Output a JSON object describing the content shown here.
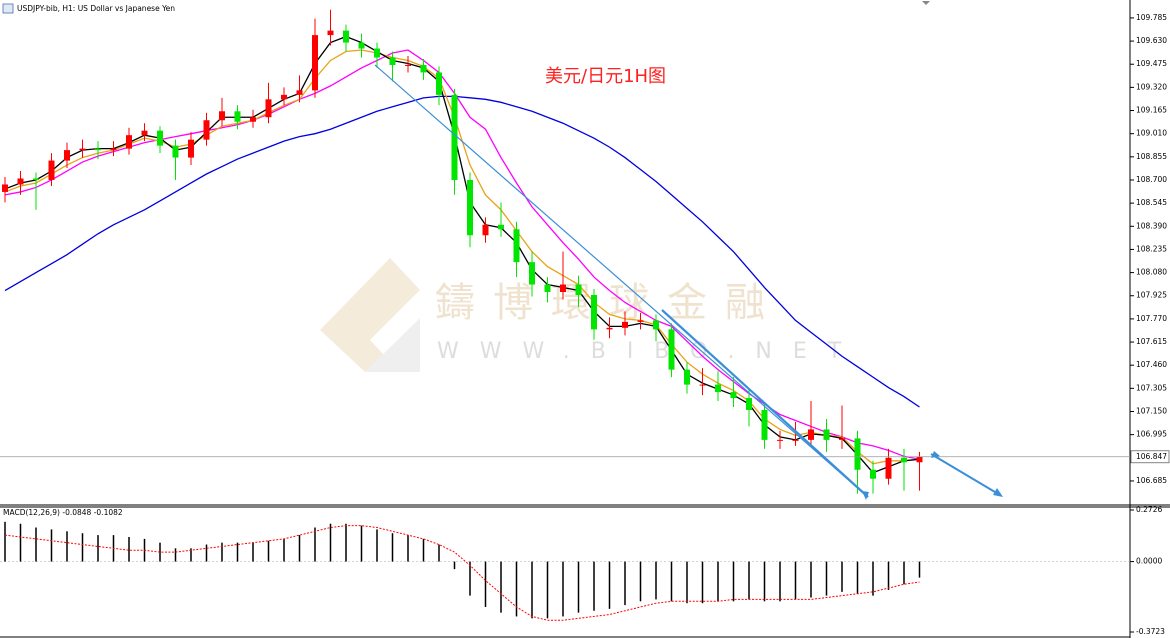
{
  "chart_data": [
    {
      "type": "candlestick",
      "title": "USDJPY-bib, H1: US Dollar vs Japanese Yen",
      "annotation": "美元/日元1H图",
      "watermark": "鑄博環球金融",
      "watermark_url": "WWW.BIBO.NET",
      "up_color": "#ff0000",
      "down_color": "#00e600",
      "ylim": [
        106.524,
        109.905
      ],
      "yticks": [
        109.785,
        {
          "value": 109.63,
          "label": "109.630"
        },
        109.475,
        {
          "value": 109.32,
          "label": "109.320"
        },
        109.165,
        {
          "value": 109.01,
          "label": "109.010"
        },
        108.855,
        {
          "value": 108.7,
          "label": "108.700"
        },
        108.545,
        {
          "value": 108.39,
          "label": "108.390"
        },
        108.235,
        {
          "value": 108.08,
          "label": "108.080"
        },
        107.925,
        {
          "value": 107.77,
          "label": "107.770"
        },
        107.615,
        {
          "value": 107.46,
          "label": "107.460"
        },
        107.305,
        {
          "value": 107.15,
          "label": "107.150"
        },
        106.995,
        106.685
      ],
      "current_price": 106.847,
      "ohlc": [
        [
          108.62,
          108.72,
          108.55,
          108.67
        ],
        [
          108.67,
          108.76,
          108.6,
          108.71
        ],
        [
          108.71,
          108.75,
          108.5,
          108.7
        ],
        [
          108.7,
          108.88,
          108.66,
          108.83
        ],
        [
          108.83,
          108.95,
          108.78,
          108.9
        ],
        [
          108.9,
          108.97,
          108.85,
          108.91
        ],
        [
          108.91,
          108.96,
          108.84,
          108.9
        ],
        [
          108.9,
          108.96,
          108.86,
          108.91
        ],
        [
          108.91,
          109.05,
          108.87,
          109
        ],
        [
          109,
          109.08,
          108.96,
          109.03
        ],
        [
          109.03,
          109.06,
          108.88,
          108.93
        ],
        [
          108.93,
          108.97,
          108.7,
          108.85
        ],
        [
          108.85,
          109.02,
          108.8,
          108.97
        ],
        [
          108.97,
          109.15,
          108.93,
          109.1
        ],
        [
          109.1,
          109.25,
          109.06,
          109.16
        ],
        [
          109.16,
          109.2,
          109.04,
          109.09
        ],
        [
          109.09,
          109.17,
          109.05,
          109.12
        ],
        [
          109.12,
          109.35,
          109.08,
          109.24
        ],
        [
          109.24,
          109.32,
          109.2,
          109.27
        ],
        [
          109.27,
          109.4,
          109.22,
          109.3
        ],
        [
          109.3,
          109.78,
          109.25,
          109.67
        ],
        [
          109.67,
          109.84,
          109.6,
          109.7
        ],
        [
          109.7,
          109.74,
          109.56,
          109.62
        ],
        [
          109.62,
          109.68,
          109.52,
          109.58
        ],
        [
          109.58,
          109.62,
          109.45,
          109.52
        ],
        [
          109.52,
          109.56,
          109.36,
          109.47
        ],
        [
          109.47,
          109.53,
          109.42,
          109.47
        ],
        [
          109.47,
          109.51,
          109.37,
          109.42
        ],
        [
          109.42,
          109.46,
          109.2,
          109.27
        ],
        [
          109.27,
          109.31,
          108.6,
          108.7
        ],
        [
          108.7,
          108.75,
          108.25,
          108.33
        ],
        [
          108.33,
          108.45,
          108.28,
          108.4
        ],
        [
          108.4,
          108.55,
          108.32,
          108.37
        ],
        [
          108.37,
          108.42,
          108.05,
          108.15
        ],
        [
          108.15,
          108.22,
          107.92,
          108
        ],
        [
          108,
          108.05,
          107.88,
          107.95
        ],
        [
          107.95,
          108.22,
          107.9,
          108
        ],
        [
          108,
          108.06,
          107.85,
          107.93
        ],
        [
          107.93,
          107.97,
          107.63,
          107.7
        ],
        [
          107.7,
          107.78,
          107.64,
          107.71
        ],
        [
          107.71,
          107.82,
          107.66,
          107.75
        ],
        [
          107.75,
          107.81,
          107.7,
          107.76
        ],
        [
          107.76,
          107.8,
          107.62,
          107.7
        ],
        [
          107.7,
          107.74,
          107.38,
          107.43
        ],
        [
          107.43,
          107.48,
          107.27,
          107.33
        ],
        [
          107.33,
          107.44,
          107.26,
          107.33
        ],
        [
          107.33,
          107.42,
          107.22,
          107.28
        ],
        [
          107.28,
          107.38,
          107.18,
          107.24
        ],
        [
          107.24,
          107.3,
          107.05,
          107.16
        ],
        [
          107.16,
          107.2,
          106.9,
          106.96
        ],
        [
          106.96,
          107.02,
          106.9,
          106.96
        ],
        [
          106.96,
          107.08,
          106.92,
          106.96
        ],
        [
          106.96,
          107.22,
          106.92,
          107.03
        ],
        [
          107.03,
          107.1,
          106.88,
          106.96
        ],
        [
          106.96,
          107.19,
          106.9,
          106.97
        ],
        [
          106.97,
          107.02,
          106.6,
          106.76
        ],
        [
          106.76,
          106.82,
          106.6,
          106.7
        ],
        [
          106.7,
          106.9,
          106.66,
          106.84
        ],
        [
          106.84,
          106.9,
          106.62,
          106.81
        ],
        [
          106.81,
          106.88,
          106.62,
          106.847
        ]
      ],
      "lines": [
        {
          "color": "#0000e0",
          "values": [
            107.96,
            108.02,
            108.08,
            108.14,
            108.2,
            108.27,
            108.34,
            108.4,
            108.45,
            108.5,
            108.56,
            108.62,
            108.68,
            108.74,
            108.79,
            108.84,
            108.88,
            108.92,
            108.96,
            108.99,
            109.01,
            109.04,
            109.08,
            109.12,
            109.16,
            109.19,
            109.22,
            109.25,
            109.26,
            109.26,
            109.25,
            109.24,
            109.22,
            109.19,
            109.16,
            109.12,
            109.08,
            109.03,
            108.98,
            108.92,
            108.85,
            108.77,
            108.69,
            108.6,
            108.51,
            108.42,
            108.32,
            108.22,
            108.1,
            107.98,
            107.87,
            107.76,
            107.68,
            107.6,
            107.52,
            107.45,
            107.38,
            107.31,
            107.25,
            107.18
          ]
        },
        {
          "color": "#ff00ff",
          "values": [
            108.6,
            108.62,
            108.65,
            108.7,
            108.76,
            108.82,
            108.86,
            108.89,
            108.92,
            108.95,
            108.97,
            108.99,
            109.01,
            109.03,
            109.05,
            109.07,
            109.1,
            109.14,
            109.19,
            109.24,
            109.28,
            109.33,
            109.39,
            109.45,
            109.5,
            109.55,
            109.57,
            109.5,
            109.42,
            109.28,
            109.12,
            109.04,
            108.85,
            108.68,
            108.52,
            108.4,
            108.28,
            108.17,
            108.05,
            107.96,
            107.88,
            107.82,
            107.76,
            107.72,
            107.62,
            107.52,
            107.43,
            107.35,
            107.27,
            107.2,
            107.13,
            107.09,
            107.05,
            107.01,
            106.98,
            106.94,
            106.92,
            106.89,
            106.85,
            106.83
          ]
        },
        {
          "color": "#e8a317",
          "values": [
            108.62,
            108.66,
            108.68,
            108.74,
            108.8,
            108.85,
            108.88,
            108.9,
            108.94,
            108.98,
            108.96,
            108.92,
            108.94,
            109,
            109.06,
            109.08,
            109.1,
            109.15,
            109.2,
            109.24,
            109.38,
            109.5,
            109.56,
            109.57,
            109.55,
            109.52,
            109.5,
            109.46,
            109.38,
            109.12,
            108.8,
            108.6,
            108.5,
            108.36,
            108.22,
            108.12,
            108.06,
            108,
            107.88,
            107.8,
            107.77,
            107.76,
            107.73,
            107.6,
            107.48,
            107.4,
            107.34,
            107.29,
            107.22,
            107.1,
            107.03,
            106.99,
            107.01,
            106.99,
            106.98,
            106.88,
            106.8,
            106.82,
            106.82,
            106.83
          ]
        },
        {
          "color": "#000000",
          "values": [
            108.64,
            108.68,
            108.7,
            108.76,
            108.85,
            108.9,
            108.91,
            108.91,
            108.95,
            109,
            108.98,
            108.9,
            108.92,
            109.02,
            109.12,
            109.12,
            109.12,
            109.18,
            109.24,
            109.28,
            109.48,
            109.62,
            109.66,
            109.62,
            109.56,
            109.5,
            109.48,
            109.45,
            109.36,
            109,
            108.55,
            108.4,
            108.38,
            108.28,
            108.1,
            108,
            107.98,
            107.96,
            107.82,
            107.72,
            107.72,
            107.74,
            107.72,
            107.56,
            107.4,
            107.34,
            107.3,
            107.26,
            107.2,
            107.06,
            106.98,
            106.96,
            107,
            106.99,
            106.97,
            106.86,
            106.74,
            106.78,
            106.82,
            106.83
          ]
        }
      ]
    },
    {
      "type": "macd",
      "title": "MACD(12,26,9)",
      "ylim": [
        -0.3987,
        0.2885
      ],
      "yticks": [
        0.2726,
        {
          "value": 0,
          "label": "0.0000"
        },
        -0.3723
      ],
      "histogram": [
        0.21,
        0.2,
        0.18,
        0.17,
        0.16,
        0.15,
        0.14,
        0.14,
        0.13,
        0.12,
        0.1,
        0.07,
        0.07,
        0.09,
        0.1,
        0.1,
        0.1,
        0.11,
        0.12,
        0.14,
        0.18,
        0.2,
        0.2,
        0.19,
        0.17,
        0.15,
        0.14,
        0.12,
        0.09,
        -0.04,
        -0.18,
        -0.24,
        -0.27,
        -0.29,
        -0.3,
        -0.3,
        -0.29,
        -0.27,
        -0.26,
        -0.25,
        -0.23,
        -0.21,
        -0.2,
        -0.21,
        -0.22,
        -0.22,
        -0.21,
        -0.21,
        -0.2,
        -0.21,
        -0.21,
        -0.2,
        -0.19,
        -0.18,
        -0.16,
        -0.17,
        -0.18,
        -0.15,
        -0.12,
        -0.0848
      ],
      "signal": [
        0.14,
        0.13,
        0.12,
        0.11,
        0.1,
        0.09,
        0.08,
        0.07,
        0.06,
        0.06,
        0.05,
        0.05,
        0.06,
        0.07,
        0.08,
        0.09,
        0.1,
        0.11,
        0.12,
        0.14,
        0.16,
        0.18,
        0.19,
        0.19,
        0.18,
        0.16,
        0.14,
        0.12,
        0.09,
        0.05,
        -0.02,
        -0.1,
        -0.17,
        -0.24,
        -0.29,
        -0.31,
        -0.31,
        -0.3,
        -0.29,
        -0.28,
        -0.26,
        -0.24,
        -0.22,
        -0.21,
        -0.21,
        -0.21,
        -0.21,
        -0.2,
        -0.2,
        -0.2,
        -0.2,
        -0.2,
        -0.2,
        -0.19,
        -0.18,
        -0.17,
        -0.16,
        -0.14,
        -0.12,
        -0.1082
      ],
      "histogram_color": "#000000",
      "signal_color": "#ff0000"
    }
  ]
}
